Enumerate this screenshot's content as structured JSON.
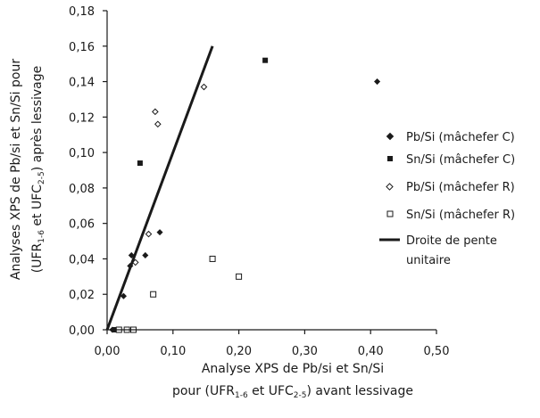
{
  "chart_data": {
    "type": "scatter",
    "xlabel_line1": "Analyse XPS de Pb/si et Sn/Si",
    "xlabel_line2_pre": "pour (UFR",
    "xlabel_line2_sub1": "1-6",
    "xlabel_line2_mid": " et UFC",
    "xlabel_line2_sub2": "2-5",
    "xlabel_line2_post": ") avant lessivage",
    "ylabel_line1": "Analyses XPS de Pb/si et Sn/Si pour",
    "ylabel_line2_pre": "(UFR",
    "ylabel_line2_sub1": "1-6",
    "ylabel_line2_mid": " et UFC",
    "ylabel_line2_sub2": "2-5",
    "ylabel_line2_post": ") après lessivage",
    "xlim": [
      0,
      0.5
    ],
    "ylim": [
      0,
      0.18
    ],
    "x_ticks": [
      "0,00",
      "0,10",
      "0,20",
      "0,30",
      "0,40",
      "0,50"
    ],
    "y_ticks": [
      "0,00",
      "0,02",
      "0,04",
      "0,06",
      "0,08",
      "0,10",
      "0,12",
      "0,14",
      "0,16",
      "0,18"
    ],
    "grid": false,
    "legend_position": "right",
    "series": [
      {
        "name": "Pb/Si (mâchefer C)",
        "marker": "diamond-filled",
        "points": [
          [
            0.008,
            0.0
          ],
          [
            0.025,
            0.019
          ],
          [
            0.035,
            0.036
          ],
          [
            0.037,
            0.042
          ],
          [
            0.058,
            0.042
          ],
          [
            0.08,
            0.055
          ],
          [
            0.41,
            0.14
          ]
        ]
      },
      {
        "name": "Sn/Si (mâchefer C)",
        "marker": "square-filled",
        "points": [
          [
            0.012,
            0.0
          ],
          [
            0.05,
            0.094
          ],
          [
            0.24,
            0.152
          ]
        ]
      },
      {
        "name": "Pb/Si (mâchefer R)",
        "marker": "diamond-open",
        "points": [
          [
            0.043,
            0.038
          ],
          [
            0.063,
            0.054
          ],
          [
            0.073,
            0.123
          ],
          [
            0.077,
            0.116
          ],
          [
            0.147,
            0.137
          ]
        ]
      },
      {
        "name": "Sn/Si (mâchefer R)",
        "marker": "square-open",
        "points": [
          [
            0.018,
            0.0
          ],
          [
            0.03,
            0.0
          ],
          [
            0.04,
            0.0
          ],
          [
            0.07,
            0.02
          ],
          [
            0.16,
            0.04
          ],
          [
            0.2,
            0.03
          ]
        ]
      },
      {
        "name_line1": "Droite de pente",
        "name_line2": "unitaire",
        "marker": "line",
        "points": [
          [
            0.0,
            0.0
          ],
          [
            0.16,
            0.16
          ]
        ]
      }
    ]
  }
}
